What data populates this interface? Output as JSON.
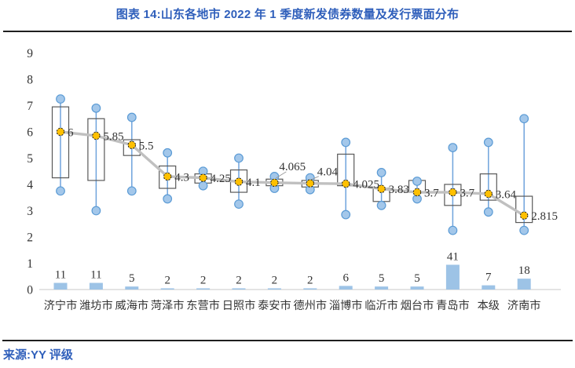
{
  "title": "图表 14:山东各地市 2022 年 1 季度新发债券数量及发行票面分布",
  "footer": {
    "source": "来源:YY 评级"
  },
  "colors": {
    "accent_blue": "#2F5FBB",
    "bar_fill": "#9DC3E6",
    "whisker_line": "#6FA3DC",
    "whisker_dot_fill": "#A3C7EA",
    "whisker_dot_stroke": "#5B9BD5",
    "box_stroke": "#595959",
    "trend_line": "#C0C0C0",
    "median_fill": "#FFC000",
    "median_stroke": "#1a1a1a",
    "axis_line": "#C8C8C8",
    "label_text": "#333333",
    "tick_text": "#3a3a3a"
  },
  "chart_data": {
    "type": "box+bar",
    "title": "图表 14:山东各地市 2022 年 1 季度新发债券数量及发行票面分布",
    "ylabel": "",
    "xlabel": "",
    "ylim": [
      0,
      9
    ],
    "yticks": [
      0,
      1,
      2,
      3,
      4,
      5,
      6,
      7,
      8,
      9
    ],
    "grid": false,
    "legend": false,
    "series_note": "每市: 发行票面分布(箱线图+须端圆点, 中位数黄点与灰色折线相连并标注) 及新发债券数量(底部浅蓝柱, 柱上数字)",
    "cities": [
      {
        "name": "济宁市",
        "count": 11,
        "median": 6,
        "label": "6",
        "q1": 4.25,
        "q3": 6.95,
        "lo": 3.75,
        "hi": 7.25,
        "callout": false
      },
      {
        "name": "潍坊市",
        "count": 11,
        "median": 5.85,
        "label": "5.85",
        "q1": 4.15,
        "q3": 6.5,
        "lo": 3.0,
        "hi": 6.9,
        "callout": false
      },
      {
        "name": "威海市",
        "count": 5,
        "median": 5.5,
        "label": "5.5",
        "q1": 5.1,
        "q3": 5.7,
        "lo": 3.75,
        "hi": 6.55,
        "callout": false
      },
      {
        "name": "菏泽市",
        "count": 2,
        "median": 4.3,
        "label": "4.3",
        "q1": 3.85,
        "q3": 4.7,
        "lo": 3.45,
        "hi": 5.2,
        "callout": false
      },
      {
        "name": "东营市",
        "count": 2,
        "median": 4.25,
        "label": "4.25",
        "q1": 4.05,
        "q3": 4.4,
        "lo": 3.95,
        "hi": 4.5,
        "callout": false
      },
      {
        "name": "日照市",
        "count": 2,
        "median": 4.1,
        "label": "4.1",
        "q1": 3.7,
        "q3": 4.55,
        "lo": 3.25,
        "hi": 5.0,
        "callout": false
      },
      {
        "name": "泰安市",
        "count": 2,
        "median": 4.065,
        "label": "4.065",
        "q1": 3.95,
        "q3": 4.2,
        "lo": 3.85,
        "hi": 4.3,
        "callout": true
      },
      {
        "name": "德州市",
        "count": 2,
        "median": 4.04,
        "label": "4.04",
        "q1": 3.9,
        "q3": 4.15,
        "lo": 3.8,
        "hi": 4.25,
        "callout": true
      },
      {
        "name": "淄博市",
        "count": 6,
        "median": 4.025,
        "label": "4.025",
        "q1": 3.95,
        "q3": 5.15,
        "lo": 2.85,
        "hi": 5.6,
        "callout": false
      },
      {
        "name": "临沂市",
        "count": 5,
        "median": 3.83,
        "label": "3.83",
        "q1": 3.35,
        "q3": 3.85,
        "lo": 3.2,
        "hi": 4.45,
        "callout": false
      },
      {
        "name": "烟台市",
        "count": 5,
        "median": 3.7,
        "label": "3.7",
        "q1": 3.7,
        "q3": 4.15,
        "lo": 3.45,
        "hi": 4.12,
        "callout": false
      },
      {
        "name": "青岛市",
        "count": 41,
        "median": 3.7,
        "label": "3.7",
        "q1": 3.2,
        "q3": 4.0,
        "lo": 2.25,
        "hi": 5.4,
        "callout": false
      },
      {
        "name": "本级",
        "count": 7,
        "median": 3.64,
        "label": "3.64",
        "q1": 3.4,
        "q3": 4.4,
        "lo": 2.95,
        "hi": 5.6,
        "callout": false
      },
      {
        "name": "济南市",
        "count": 18,
        "median": 2.815,
        "label": "2.815",
        "q1": 2.55,
        "q3": 3.55,
        "lo": 2.25,
        "hi": 6.5,
        "callout": false
      }
    ]
  }
}
